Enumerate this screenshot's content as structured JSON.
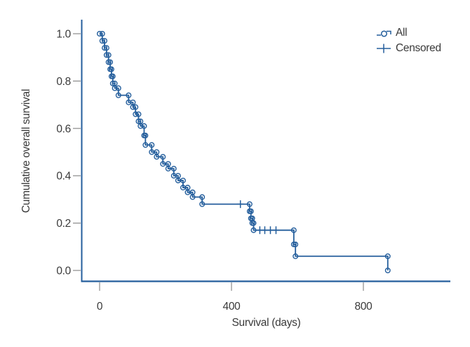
{
  "chart_data": {
    "type": "line",
    "subtype": "kaplan-meier-step-survival",
    "title": "",
    "xlabel": "Survival (days)",
    "ylabel": "Cumulative overall survival",
    "xticks": [
      0,
      400,
      800
    ],
    "yticks": [
      0.0,
      0.2,
      0.4,
      0.6,
      0.8,
      1.0
    ],
    "xlim": [
      -55,
      1065
    ],
    "ylim": [
      -0.05,
      1.06
    ],
    "grid": false,
    "legend_position": "top-right",
    "series": [
      {
        "name": "All",
        "marker": "open-circle",
        "points": [
          [
            0,
            1.0
          ],
          [
            8,
            0.97
          ],
          [
            15,
            0.94
          ],
          [
            21,
            0.91
          ],
          [
            27,
            0.88
          ],
          [
            32,
            0.85
          ],
          [
            36,
            0.82
          ],
          [
            40,
            0.79
          ],
          [
            46,
            0.77
          ],
          [
            57,
            0.74
          ],
          [
            88,
            0.71
          ],
          [
            101,
            0.69
          ],
          [
            109,
            0.66
          ],
          [
            118,
            0.63
          ],
          [
            124,
            0.61
          ],
          [
            135,
            0.57
          ],
          [
            139,
            0.53
          ],
          [
            158,
            0.5
          ],
          [
            173,
            0.48
          ],
          [
            192,
            0.45
          ],
          [
            208,
            0.43
          ],
          [
            225,
            0.4
          ],
          [
            238,
            0.38
          ],
          [
            253,
            0.35
          ],
          [
            267,
            0.33
          ],
          [
            282,
            0.31
          ],
          [
            311,
            0.28
          ],
          [
            455,
            0.25
          ],
          [
            459,
            0.22
          ],
          [
            463,
            0.2
          ],
          [
            467,
            0.17
          ],
          [
            589,
            0.11
          ],
          [
            594,
            0.06
          ],
          [
            874,
            0.0
          ]
        ]
      }
    ],
    "censored": {
      "name": "Censored",
      "marker": "plus",
      "points": [
        [
          427,
          0.28
        ],
        [
          486,
          0.17
        ],
        [
          501,
          0.17
        ],
        [
          518,
          0.17
        ],
        [
          535,
          0.17
        ]
      ]
    }
  },
  "legend": {
    "items": [
      {
        "label": "All",
        "marker": "circle-step-icon"
      },
      {
        "label": "Censored",
        "marker": "plus-icon"
      }
    ]
  },
  "colors": {
    "curve": "#245e9c",
    "axis": "#245e9c",
    "tick": "#8a8a8a",
    "text": "#3a3a3a"
  }
}
